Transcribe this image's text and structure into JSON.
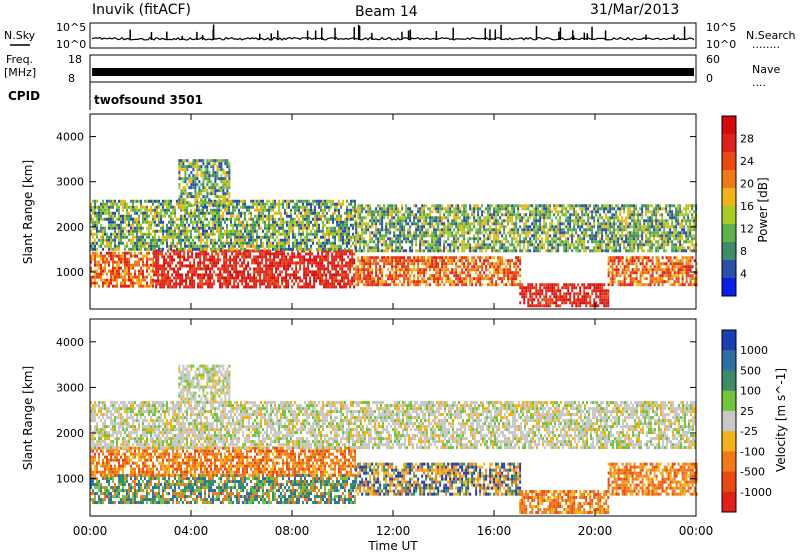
{
  "header": {
    "station": "Inuvik (fitACF)",
    "beam": "Beam 14",
    "date": "31/Mar/2013"
  },
  "strips": {
    "nsky_label": "N.Sky",
    "nsky_ticks": [
      "10^5",
      "10^0"
    ],
    "nsearch_label": "N.Search",
    "freq_label_1": "Freq.",
    "freq_label_2": "[MHz]",
    "freq_ticks": [
      "18",
      "8"
    ],
    "nave_label": "Nave",
    "nave_ticks": [
      "60",
      "0"
    ],
    "cpid_label": "CPID",
    "cpid_value": "twofsound 3501",
    "nave_dots": "....",
    "nsearch_dots": "........"
  },
  "chart_data": [
    {
      "type": "heatmap",
      "name": "power",
      "ylabel": "Slant Range [km]",
      "xlabel": "Time UT",
      "x_ticks": [
        "00:00",
        "04:00",
        "08:00",
        "12:00",
        "16:00",
        "20:00",
        "00:00"
      ],
      "xlim": [
        0,
        24
      ],
      "y_ticks": [
        1000,
        2000,
        3000,
        4000
      ],
      "ylim": [
        180,
        4500
      ],
      "colorbar_label": "Power [dB]",
      "colorbar_ticks": [
        "4",
        "8",
        "12",
        "16",
        "20",
        "24",
        "28"
      ],
      "colorbar_colors": [
        "#0b1ee6",
        "#2a4fa8",
        "#3e8a6a",
        "#5fb24a",
        "#a6cc2a",
        "#f2b21a",
        "#f07a1a",
        "#e84a12",
        "#e0201a",
        "#d40a0a"
      ],
      "bands": [
        {
          "t0": 0.0,
          "t1": 2.5,
          "r0": 700,
          "r1": 1450,
          "level": "high"
        },
        {
          "t0": 2.5,
          "t1": 10.5,
          "r0": 650,
          "r1": 1500,
          "level": "very-high"
        },
        {
          "t0": 10.5,
          "t1": 17.0,
          "r0": 750,
          "r1": 1350,
          "level": "high"
        },
        {
          "t0": 17.0,
          "t1": 20.5,
          "r0": 250,
          "r1": 750,
          "level": "very-high"
        },
        {
          "t0": 20.5,
          "t1": 24.0,
          "r0": 700,
          "r1": 1350,
          "level": "high"
        },
        {
          "t0": 0.0,
          "t1": 10.5,
          "r0": 1500,
          "r1": 2600,
          "level": "mid"
        },
        {
          "t0": 10.5,
          "t1": 24.0,
          "r0": 1450,
          "r1": 2500,
          "level": "mid"
        },
        {
          "t0": 3.5,
          "t1": 5.5,
          "r0": 2500,
          "r1": 3500,
          "level": "mid"
        }
      ]
    },
    {
      "type": "heatmap",
      "name": "velocity",
      "ylabel": "Slant Range [km]",
      "xlabel": "Time UT",
      "x_ticks": [
        "00:00",
        "04:00",
        "08:00",
        "12:00",
        "16:00",
        "20:00",
        "00:00"
      ],
      "xlim": [
        0,
        24
      ],
      "y_ticks": [
        1000,
        2000,
        3000,
        4000
      ],
      "ylim": [
        180,
        4500
      ],
      "colorbar_label": "Velocity [m s^-1]",
      "colorbar_ticks": [
        "1000",
        "500",
        "100",
        "25",
        "-25",
        "-100",
        "-500",
        "-1000"
      ],
      "colorbar_colors": [
        "#1a3fb0",
        "#2e6ea0",
        "#3c8a66",
        "#72c43c",
        "#c8c8c8",
        "#f2b21a",
        "#f07a1a",
        "#e84a12",
        "#e0201a"
      ],
      "bands": [
        {
          "t0": 0.0,
          "t1": 10.5,
          "r0": 500,
          "r1": 1100,
          "level": "green"
        },
        {
          "t0": 0.0,
          "t1": 10.5,
          "r0": 1100,
          "r1": 1700,
          "level": "orange"
        },
        {
          "t0": 10.5,
          "t1": 17.0,
          "r0": 650,
          "r1": 1350,
          "level": "mix"
        },
        {
          "t0": 17.0,
          "t1": 20.5,
          "r0": 250,
          "r1": 750,
          "level": "orange"
        },
        {
          "t0": 20.5,
          "t1": 24.0,
          "r0": 650,
          "r1": 1350,
          "level": "orange"
        },
        {
          "t0": 0.0,
          "t1": 24.0,
          "r0": 1700,
          "r1": 2700,
          "level": "grey"
        },
        {
          "t0": 3.5,
          "t1": 5.5,
          "r0": 2700,
          "r1": 3500,
          "level": "grey"
        }
      ]
    }
  ]
}
